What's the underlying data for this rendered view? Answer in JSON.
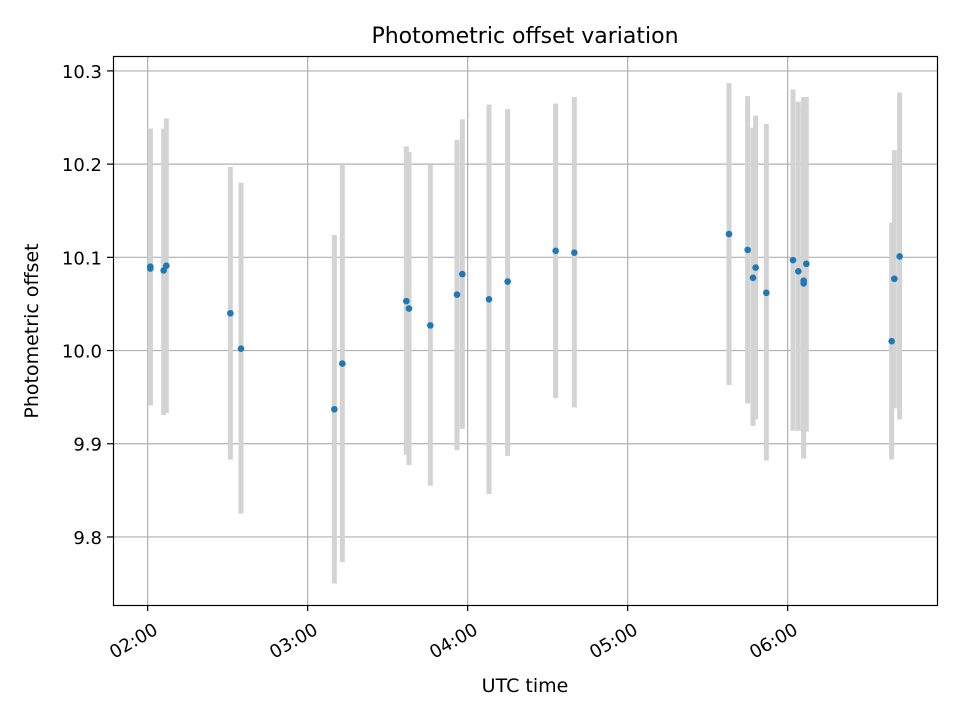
{
  "chart_data": {
    "type": "scatter",
    "title": "Photometric offset variation",
    "xlabel": "UTC time",
    "ylabel": "Photometric offset",
    "x_tick_labels": [
      "02:00",
      "03:00",
      "04:00",
      "05:00",
      "06:00"
    ],
    "y_tick_labels": [
      "9.8",
      "9.9",
      "10.0",
      "10.1",
      "10.2",
      "10.3"
    ],
    "xlim": [
      "01:47",
      "06:56"
    ],
    "ylim": [
      9.727,
      10.316
    ],
    "grid": true,
    "legend": "none",
    "error_bars": "vertical",
    "colors": {
      "point": "#1f77b4",
      "errorbar": "#d3d3d3",
      "grid": "#b0b0b0"
    },
    "points": [
      {
        "x": "02:01",
        "y": 10.09,
        "y_low": 9.941,
        "y_high": 10.238
      },
      {
        "x": "02:01",
        "y": 10.088,
        "y_low": 9.941,
        "y_high": 10.238
      },
      {
        "x": "02:06",
        "y": 10.086,
        "y_low": 9.931,
        "y_high": 10.238
      },
      {
        "x": "02:07",
        "y": 10.091,
        "y_low": 9.933,
        "y_high": 10.249
      },
      {
        "x": "02:31",
        "y": 10.04,
        "y_low": 9.883,
        "y_high": 10.197
      },
      {
        "x": "02:35",
        "y": 10.002,
        "y_low": 9.825,
        "y_high": 10.18
      },
      {
        "x": "03:10",
        "y": 9.937,
        "y_low": 9.75,
        "y_high": 10.124
      },
      {
        "x": "03:13",
        "y": 9.986,
        "y_low": 9.773,
        "y_high": 10.2
      },
      {
        "x": "03:37",
        "y": 10.053,
        "y_low": 9.888,
        "y_high": 10.219
      },
      {
        "x": "03:38",
        "y": 10.045,
        "y_low": 9.877,
        "y_high": 10.213
      },
      {
        "x": "03:46",
        "y": 10.027,
        "y_low": 9.855,
        "y_high": 10.199
      },
      {
        "x": "03:56",
        "y": 10.06,
        "y_low": 9.893,
        "y_high": 10.226
      },
      {
        "x": "03:58",
        "y": 10.082,
        "y_low": 9.916,
        "y_high": 10.248
      },
      {
        "x": "04:08",
        "y": 10.055,
        "y_low": 9.846,
        "y_high": 10.264
      },
      {
        "x": "04:15",
        "y": 10.074,
        "y_low": 9.887,
        "y_high": 10.259
      },
      {
        "x": "04:33",
        "y": 10.107,
        "y_low": 9.949,
        "y_high": 10.265
      },
      {
        "x": "04:40",
        "y": 10.105,
        "y_low": 9.939,
        "y_high": 10.272
      },
      {
        "x": "05:38",
        "y": 10.125,
        "y_low": 9.963,
        "y_high": 10.287
      },
      {
        "x": "05:45",
        "y": 10.108,
        "y_low": 9.943,
        "y_high": 10.273
      },
      {
        "x": "05:47",
        "y": 10.078,
        "y_low": 9.919,
        "y_high": 10.239
      },
      {
        "x": "05:48",
        "y": 10.089,
        "y_low": 9.926,
        "y_high": 10.252
      },
      {
        "x": "05:52",
        "y": 10.062,
        "y_low": 9.882,
        "y_high": 10.243
      },
      {
        "x": "06:02",
        "y": 10.097,
        "y_low": 9.914,
        "y_high": 10.28
      },
      {
        "x": "06:04",
        "y": 10.085,
        "y_low": 9.914,
        "y_high": 10.267
      },
      {
        "x": "06:06",
        "y": 10.072,
        "y_low": 9.884,
        "y_high": 10.262
      },
      {
        "x": "06:06",
        "y": 10.075,
        "y_low": 9.913,
        "y_high": 10.272
      },
      {
        "x": "06:07",
        "y": 10.093,
        "y_low": 9.913,
        "y_high": 10.272
      },
      {
        "x": "06:39",
        "y": 10.01,
        "y_low": 9.883,
        "y_high": 10.137
      },
      {
        "x": "06:40",
        "y": 10.077,
        "y_low": 9.938,
        "y_high": 10.215
      },
      {
        "x": "06:42",
        "y": 10.101,
        "y_low": 9.926,
        "y_high": 10.277
      }
    ]
  }
}
